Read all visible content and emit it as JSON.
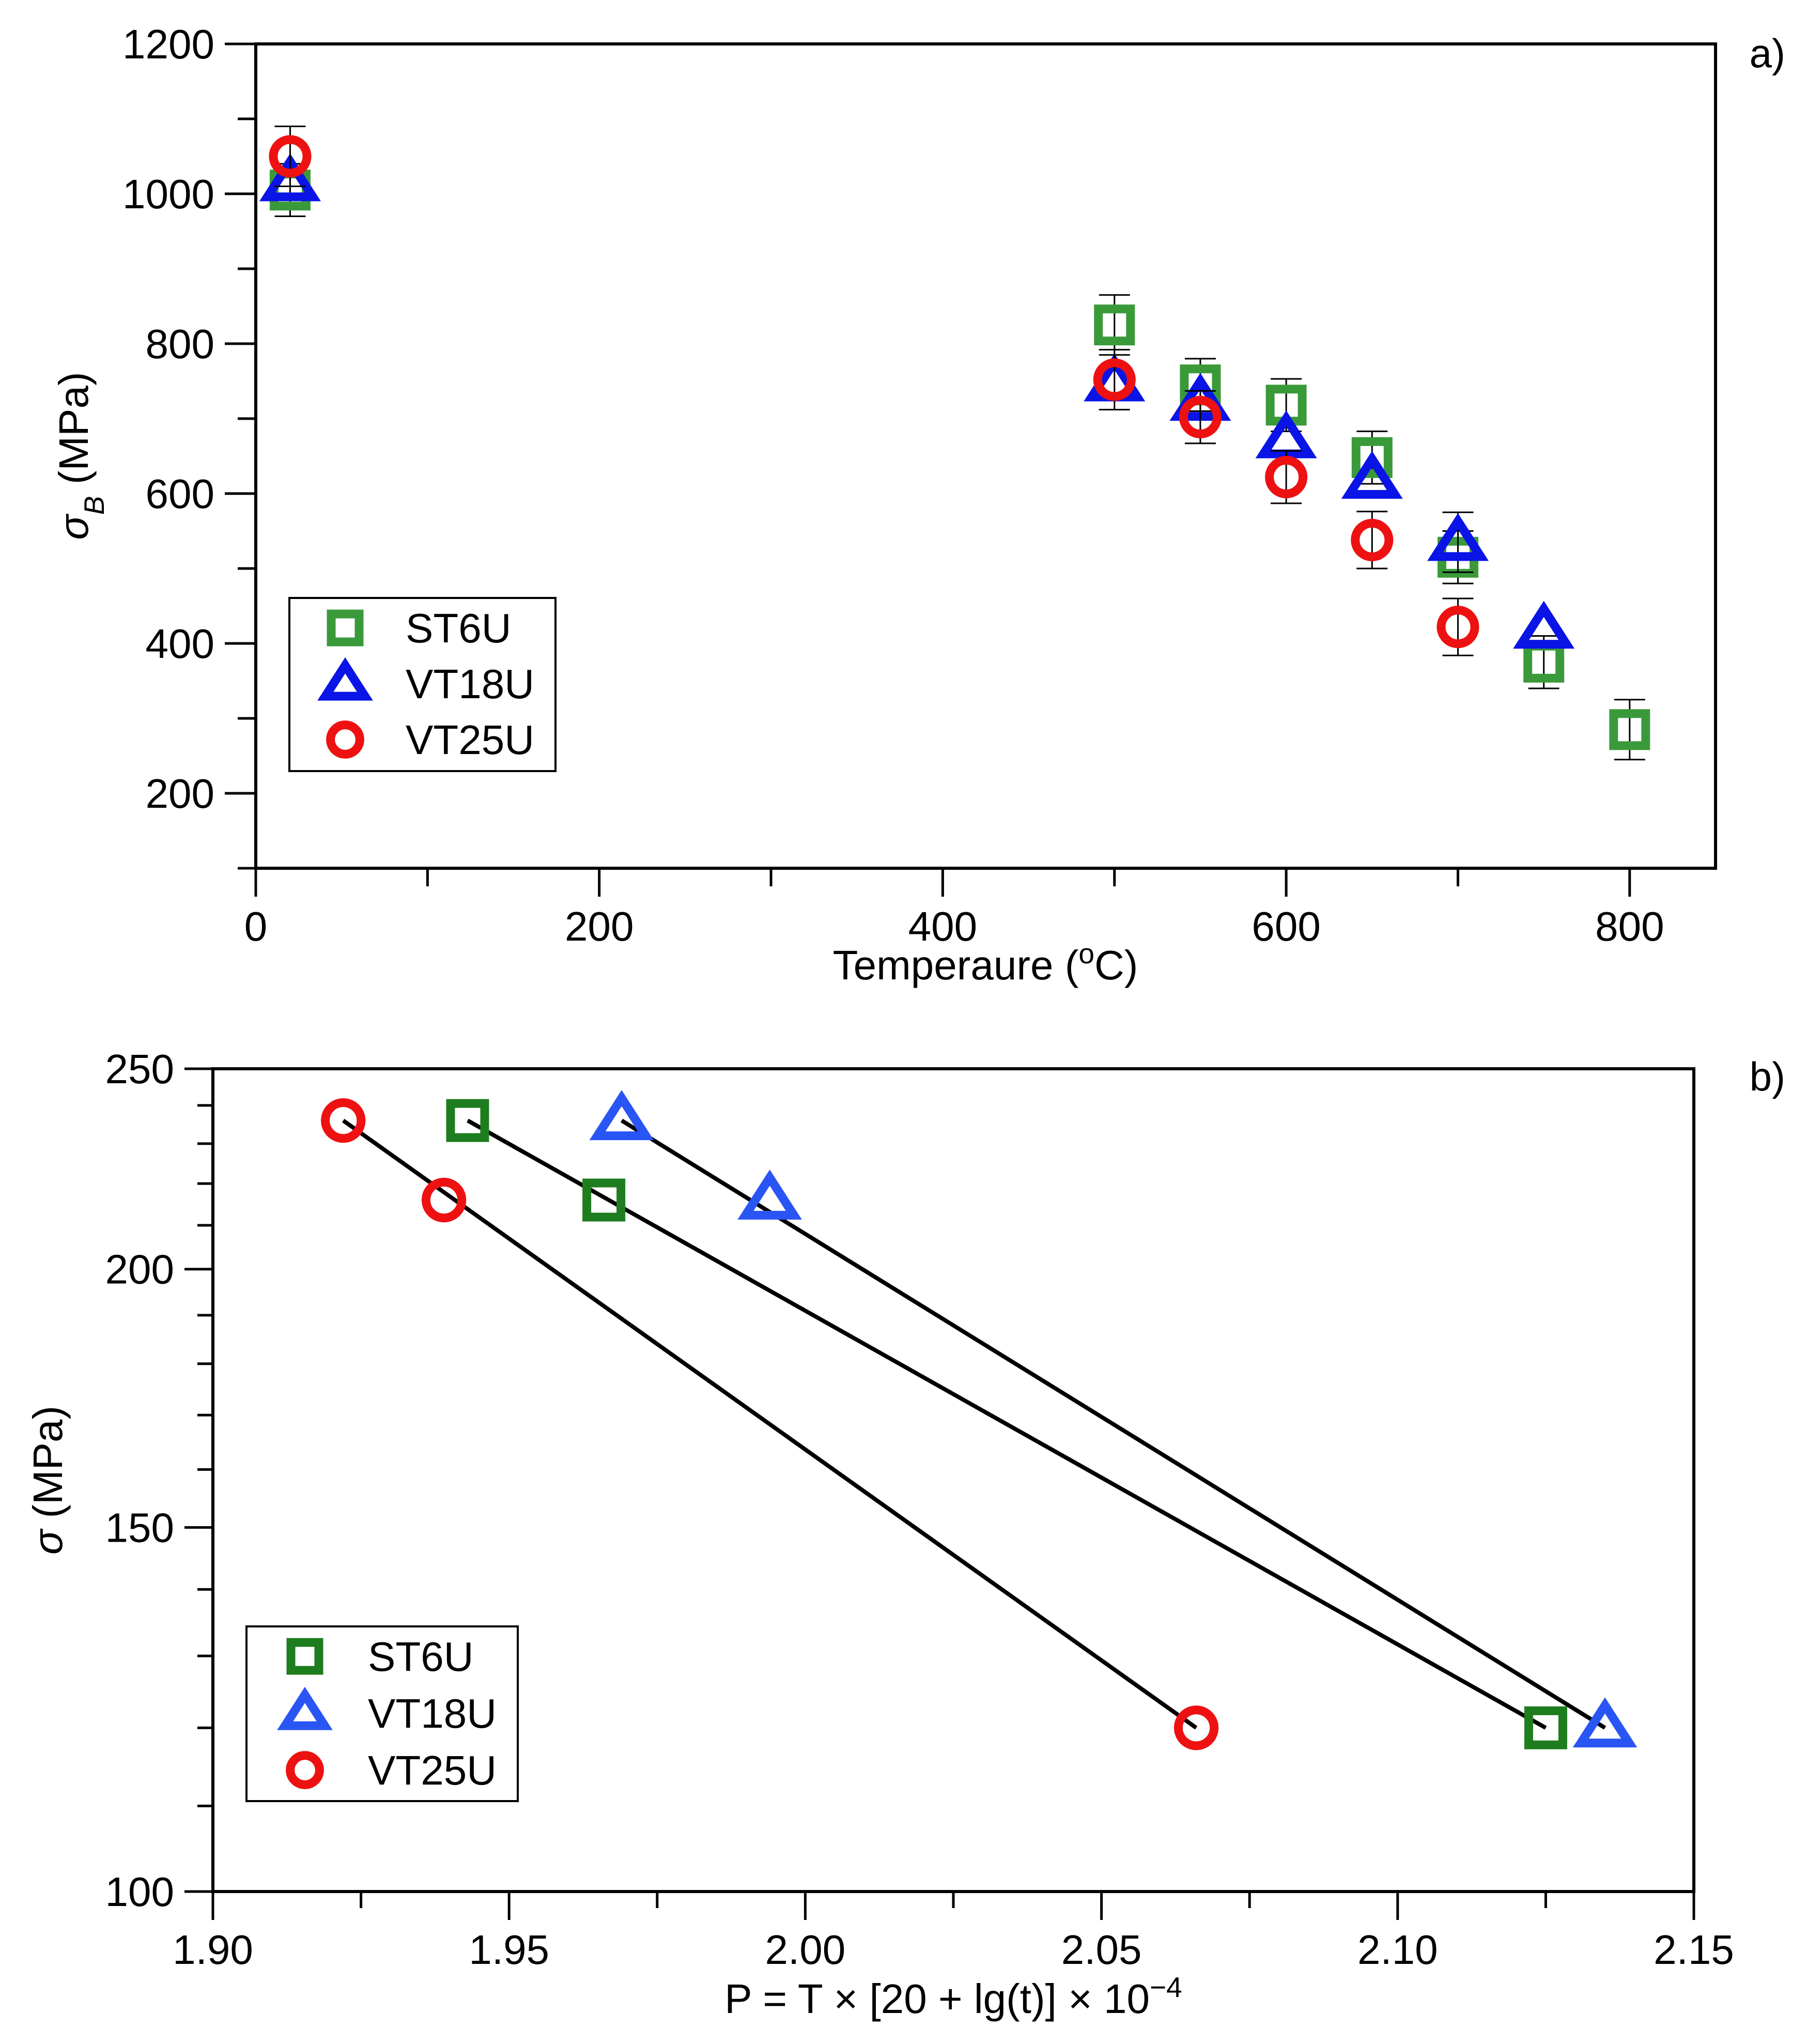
{
  "colors": {
    "ST6U_a": "#3a9a3a",
    "ST6U_b": "#1e7d1e",
    "VT18U_a": "#0a14e6",
    "VT18U_b": "#2a55f5",
    "VT25U": "#ee1111",
    "fit_line": "#000000"
  },
  "chart_data": [
    {
      "panel_label": "a)",
      "type": "scatter",
      "xlabel": {
        "text": "Temperaure (",
        "sup": "o",
        "tail": "C)"
      },
      "ylabel": {
        "sym": "σ",
        "sub": "B",
        "text": " (MPa)"
      },
      "xlim": [
        0,
        850
      ],
      "ylim": [
        100,
        1200
      ],
      "xticks": [
        0,
        200,
        400,
        600,
        800
      ],
      "xtick_labels": [
        "0",
        "200",
        "400",
        "600",
        "800"
      ],
      "yticks": [
        200,
        400,
        600,
        800,
        1000,
        1200
      ],
      "ytick_labels": [
        "200",
        "400",
        "600",
        "800",
        "1000",
        "1200"
      ],
      "legend_position": "bottom-left",
      "series": [
        {
          "name": "ST6U",
          "marker": "square",
          "x": [
            20,
            500,
            550,
            600,
            650,
            700,
            750,
            800
          ],
          "y": [
            1005,
            825,
            745,
            718,
            648,
            515,
            375,
            285
          ],
          "err": [
            35,
            40,
            35,
            35,
            35,
            35,
            35,
            40
          ]
        },
        {
          "name": "VT18U",
          "marker": "triangle",
          "x": [
            20,
            500,
            550,
            600,
            650,
            700,
            750
          ],
          "y": [
            1015,
            748,
            722,
            672,
            618,
            535,
            418
          ],
          "err": [
            0,
            0,
            0,
            0,
            0,
            40,
            0
          ]
        },
        {
          "name": "VT25U",
          "marker": "circle",
          "x": [
            20,
            500,
            550,
            600,
            650,
            700
          ],
          "y": [
            1050,
            752,
            702,
            622,
            538,
            422
          ],
          "err": [
            40,
            40,
            35,
            35,
            38,
            38
          ]
        }
      ]
    },
    {
      "panel_label": "b)",
      "type": "scatter",
      "xlabel": {
        "text": "P = T × [20 + lg(t)] × 10",
        "sup": "−4",
        "tail": ""
      },
      "ylabel": {
        "sym": "σ",
        "sub": "",
        "text": " (MPa)"
      },
      "xlim": [
        1.9,
        2.15
      ],
      "ylim": [
        100,
        250
      ],
      "yscale": "log",
      "xticks": [
        1.9,
        1.95,
        2.0,
        2.05,
        2.1,
        2.15
      ],
      "xtick_labels": [
        "1.90",
        "1.95",
        "2.00",
        "2.05",
        "2.10",
        "2.15"
      ],
      "yticks": [
        100,
        150,
        200,
        250
      ],
      "ytick_labels": [
        "100",
        "150",
        "200",
        "250"
      ],
      "legend_position": "bottom-left",
      "series": [
        {
          "name": "ST6U",
          "marker": "square",
          "x": [
            1.943,
            1.966,
            2.125
          ],
          "y": [
            236,
            216,
            120
          ],
          "fit": [
            [
              1.943,
              236
            ],
            [
              2.125,
              120
            ]
          ]
        },
        {
          "name": "VT18U",
          "marker": "triangle",
          "x": [
            1.969,
            1.994,
            2.135
          ],
          "y": [
            236,
            216,
            120
          ],
          "fit": [
            [
              1.969,
              236
            ],
            [
              2.135,
              120
            ]
          ]
        },
        {
          "name": "VT25U",
          "marker": "circle",
          "x": [
            1.922,
            1.939,
            2.066
          ],
          "y": [
            236,
            216,
            120
          ],
          "fit": [
            [
              1.922,
              236
            ],
            [
              2.066,
              120
            ]
          ]
        }
      ]
    }
  ]
}
